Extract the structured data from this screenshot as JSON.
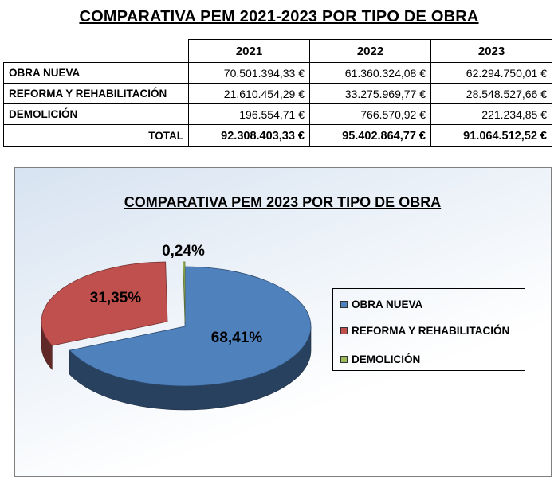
{
  "table": {
    "title": "COMPARATIVA PEM 2021-2023 POR TIPO DE OBRA",
    "years": [
      "2021",
      "2022",
      "2023"
    ],
    "rows": [
      {
        "label": "OBRA NUEVA",
        "values": [
          "70.501.394,33 €",
          "61.360.324,08 €",
          "62.294.750,01 €"
        ]
      },
      {
        "label": "REFORMA Y REHABILITACIÓN",
        "values": [
          "21.610.454,29 €",
          "33.275.969,77 €",
          "28.548.527,66 €"
        ]
      },
      {
        "label": "DEMOLICIÓN",
        "values": [
          "196.554,71 €",
          "766.570,92 €",
          "221.234,85 €"
        ]
      }
    ],
    "total": {
      "label": "TOTAL",
      "values": [
        "92.308.403,33 €",
        "95.402.864,77 €",
        "91.064.512,52 €"
      ]
    }
  },
  "chart_data": {
    "type": "pie",
    "title": "COMPARATIVA PEM 2023 POR TIPO DE OBRA",
    "categories": [
      "OBRA NUEVA",
      "REFORMA Y REHABILITACIÓN",
      "DEMOLICIÓN"
    ],
    "values": [
      68.41,
      31.35,
      0.24
    ],
    "labels": [
      "68,41%",
      "31,35%",
      "0,24%"
    ],
    "colors": [
      "#4f81bd",
      "#c0504d",
      "#9bbb59"
    ],
    "exploded": true,
    "style": "3d",
    "legend": "right"
  }
}
